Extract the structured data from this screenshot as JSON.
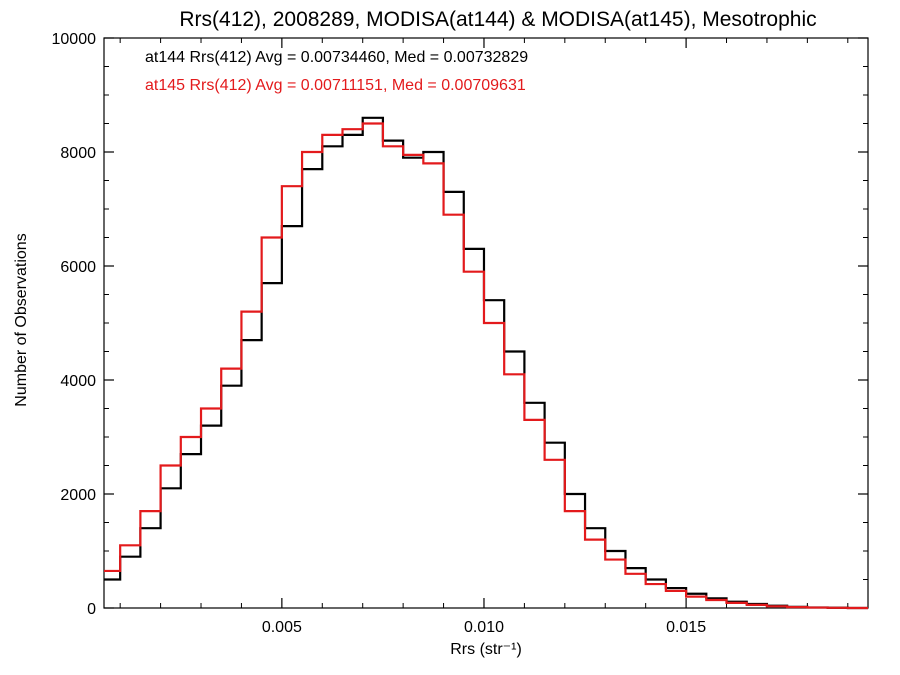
{
  "chart_data": {
    "type": "line",
    "step": true,
    "title": "Rrs(412), 2008289, MODISA(at144) & MODISA(at145), Mesotrophic",
    "xlabel": "Rrs (str⁻¹)",
    "ylabel": "Number of Observations",
    "xlim": [
      0.0006,
      0.0195
    ],
    "ylim": [
      0,
      10000
    ],
    "xticks": [
      0.005,
      0.01,
      0.015
    ],
    "xtick_labels": [
      "0.005",
      "0.010",
      "0.015"
    ],
    "yticks": [
      0,
      2000,
      4000,
      6000,
      8000,
      10000
    ],
    "ytick_labels": [
      "0",
      "2000",
      "4000",
      "6000",
      "8000",
      "10000"
    ],
    "grid": false,
    "legend_placement": "top-left",
    "series": [
      {
        "name": "at144",
        "color": "#000000",
        "annotation": "at144 Rrs(412) Avg = 0.00734460, Med = 0.00732829",
        "x": [
          0.0006,
          0.001,
          0.0015,
          0.002,
          0.0025,
          0.003,
          0.0035,
          0.004,
          0.0045,
          0.005,
          0.0055,
          0.006,
          0.0065,
          0.007,
          0.0075,
          0.008,
          0.0085,
          0.009,
          0.0095,
          0.01,
          0.0105,
          0.011,
          0.0115,
          0.012,
          0.0125,
          0.013,
          0.0135,
          0.014,
          0.0145,
          0.015,
          0.0155,
          0.016,
          0.0165,
          0.017,
          0.0175,
          0.018,
          0.0185,
          0.019,
          0.0195
        ],
        "values": [
          500,
          900,
          1400,
          2100,
          2700,
          3200,
          3900,
          4700,
          5700,
          6700,
          7700,
          8100,
          8300,
          8600,
          8200,
          7900,
          8000,
          7300,
          6300,
          5400,
          4500,
          3600,
          2900,
          2000,
          1400,
          1000,
          700,
          500,
          350,
          250,
          170,
          110,
          70,
          40,
          20,
          10,
          5,
          0,
          0
        ]
      },
      {
        "name": "at145",
        "color": "#e31a1c",
        "annotation": "at145 Rrs(412) Avg = 0.00711151, Med = 0.00709631",
        "x": [
          0.0006,
          0.001,
          0.0015,
          0.002,
          0.0025,
          0.003,
          0.0035,
          0.004,
          0.0045,
          0.005,
          0.0055,
          0.006,
          0.0065,
          0.007,
          0.0075,
          0.008,
          0.0085,
          0.009,
          0.0095,
          0.01,
          0.0105,
          0.011,
          0.0115,
          0.012,
          0.0125,
          0.013,
          0.0135,
          0.014,
          0.0145,
          0.015,
          0.0155,
          0.016,
          0.0165,
          0.017,
          0.0175,
          0.018,
          0.0185,
          0.019,
          0.0195
        ],
        "values": [
          650,
          1100,
          1700,
          2500,
          3000,
          3500,
          4200,
          5200,
          6500,
          7400,
          8000,
          8300,
          8400,
          8500,
          8100,
          7950,
          7800,
          6900,
          5900,
          5000,
          4100,
          3300,
          2600,
          1700,
          1200,
          850,
          600,
          420,
          300,
          200,
          140,
          90,
          55,
          30,
          15,
          8,
          3,
          0,
          0
        ]
      }
    ]
  }
}
